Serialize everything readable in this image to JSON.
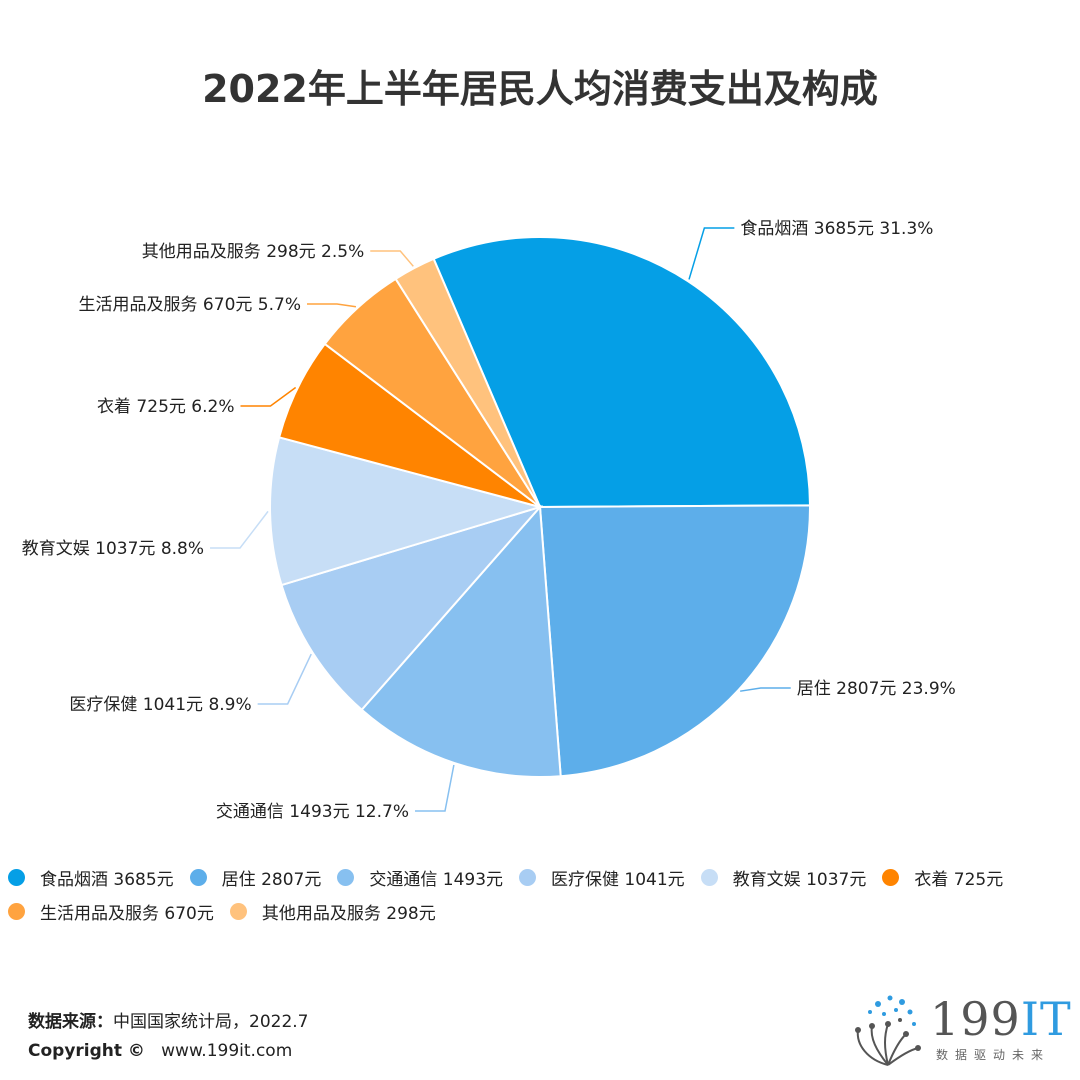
{
  "title": "2022年上半年居民人均消费支出及构成",
  "chart_data": {
    "type": "pie",
    "title": "2022年上半年居民人均消费支出及构成",
    "slices": [
      {
        "name": "食品烟酒",
        "value": 3685,
        "value_text": "3685元",
        "percent": "31.3%",
        "color": "#059fe6",
        "label_side": "right"
      },
      {
        "name": "居住",
        "value": 2807,
        "value_text": "2807元",
        "percent": "23.9%",
        "color": "#5daeea",
        "label_side": "right"
      },
      {
        "name": "交通通信",
        "value": 1493,
        "value_text": "1493元",
        "percent": "12.7%",
        "color": "#87c0f0",
        "label_side": "left"
      },
      {
        "name": "医疗保健",
        "value": 1041,
        "value_text": "1041元",
        "percent": "8.9%",
        "color": "#a8cdf3",
        "label_side": "left"
      },
      {
        "name": "教育文娱",
        "value": 1037,
        "value_text": "1037元",
        "percent": "8.8%",
        "color": "#c7def6",
        "label_side": "left"
      },
      {
        "name": "衣着",
        "value": 725,
        "value_text": "725元",
        "percent": "6.2%",
        "color": "#ff8400",
        "label_side": "left"
      },
      {
        "name": "生活用品及服务",
        "value": 670,
        "value_text": "670元",
        "percent": "5.7%",
        "color": "#ffa33f",
        "label_side": "left"
      },
      {
        "name": "其他用品及服务",
        "value": 298,
        "value_text": "298元",
        "percent": "2.5%",
        "color": "#ffc27d",
        "label_side": "left"
      }
    ],
    "legend": [
      {
        "label": "食品烟酒 3685元",
        "color": "#059fe6"
      },
      {
        "label": "居住  2807元",
        "color": "#5daeea"
      },
      {
        "label": "交通通信 1493元",
        "color": "#87c0f0"
      },
      {
        "label": "医疗保健  1041元",
        "color": "#a8cdf3"
      },
      {
        "label": "教育文娱  1037元",
        "color": "#c7def6"
      },
      {
        "label": "衣着  725元",
        "color": "#ff8400"
      },
      {
        "label": "生活用品及服务  670元",
        "color": "#ffa33f"
      },
      {
        "label": "其他用品及服务  298元",
        "color": "#ffc27d"
      }
    ],
    "legend_position": "bottom"
  },
  "footer": {
    "source_label": "数据来源：",
    "source_value": "中国国家统计局，2022.7",
    "copyright_label": "Copyright ©",
    "copyright_value": "www.199it.com"
  },
  "logo": {
    "text_main": "199",
    "text_accent": "IT",
    "subtitle": "数据驱动未来",
    "icon": "dandelion-dots-icon"
  }
}
